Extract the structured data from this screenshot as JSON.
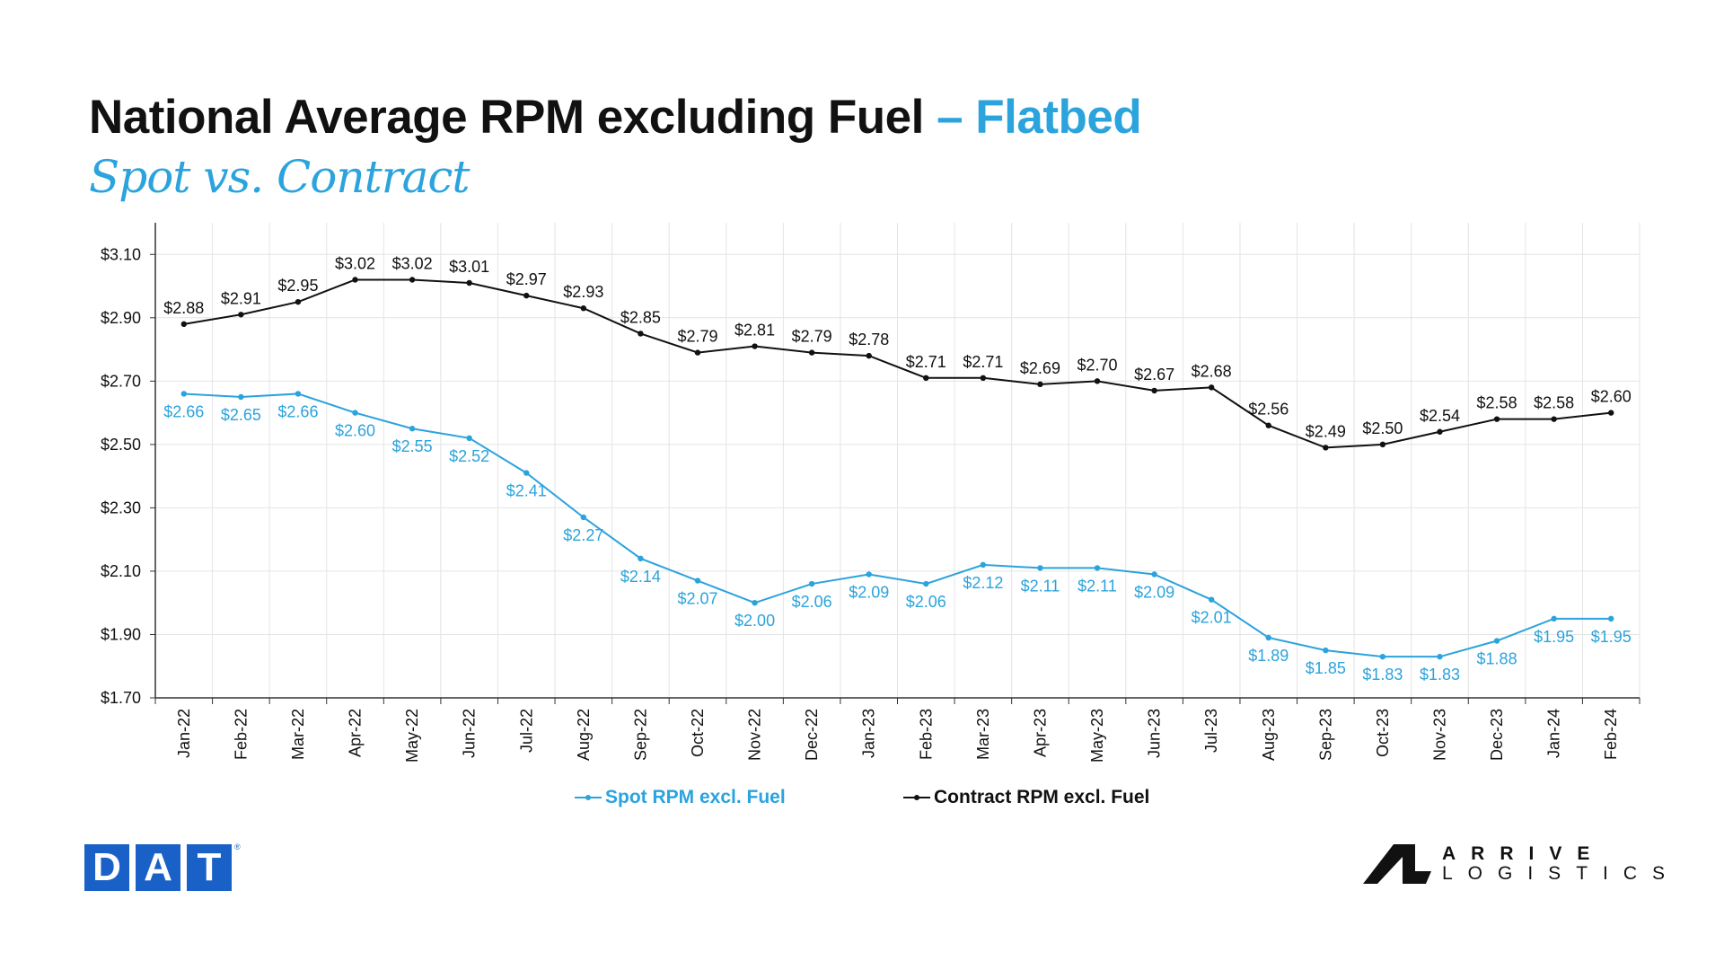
{
  "header": {
    "title": "National Average RPM excluding Fuel",
    "title_accent": "– Flatbed",
    "subtitle": "Spot vs. Contract"
  },
  "colors": {
    "spot": "#2ba3dc",
    "contract": "#111111",
    "grid": "#e4e4e4",
    "axis": "#333333"
  },
  "chart_data": {
    "type": "line",
    "title": "National Average RPM excluding Fuel – Flatbed",
    "subtitle": "Spot vs. Contract",
    "categories": [
      "Jan-22",
      "Feb-22",
      "Mar-22",
      "Apr-22",
      "May-22",
      "Jun-22",
      "Jul-22",
      "Aug-22",
      "Sep-22",
      "Oct-22",
      "Nov-22",
      "Dec-22",
      "Jan-23",
      "Feb-23",
      "Mar-23",
      "Apr-23",
      "May-23",
      "Jun-23",
      "Jul-23",
      "Aug-23",
      "Sep-23",
      "Oct-23",
      "Nov-23",
      "Dec-23",
      "Jan-24",
      "Feb-24"
    ],
    "series": [
      {
        "name": "Spot RPM excl. Fuel",
        "color": "#2ba3dc",
        "values": [
          2.66,
          2.65,
          2.66,
          2.6,
          2.55,
          2.52,
          2.41,
          2.27,
          2.14,
          2.07,
          2.0,
          2.06,
          2.09,
          2.06,
          2.12,
          2.11,
          2.11,
          2.09,
          2.01,
          1.89,
          1.85,
          1.83,
          1.83,
          1.88,
          1.95,
          1.95
        ],
        "labels": [
          "$2.66",
          "$2.65",
          "$2.66",
          "$2.60",
          "$2.55",
          "$2.52",
          "$2.41",
          "$2.27",
          "$2.14",
          "$2.07",
          "$2.00",
          "$2.06",
          "$2.09",
          "$2.06",
          "$2.12",
          "$2.11",
          "$2.11",
          "$2.09",
          "$2.01",
          "$1.89",
          "$1.85",
          "$1.83",
          "$1.83",
          "$1.88",
          "$1.95",
          "$1.95"
        ]
      },
      {
        "name": "Contract RPM excl. Fuel",
        "color": "#111111",
        "values": [
          2.88,
          2.91,
          2.95,
          3.02,
          3.02,
          3.01,
          2.97,
          2.93,
          2.85,
          2.79,
          2.81,
          2.79,
          2.78,
          2.71,
          2.71,
          2.69,
          2.7,
          2.67,
          2.68,
          2.56,
          2.49,
          2.5,
          2.54,
          2.58,
          2.58,
          2.6
        ],
        "labels": [
          "$2.88",
          "$2.91",
          "$2.95",
          "$3.02",
          "$3.02",
          "$3.01",
          "$2.97",
          "$2.93",
          "$2.85",
          "$2.79",
          "$2.81",
          "$2.79",
          "$2.78",
          "$2.71",
          "$2.71",
          "$2.69",
          "$2.70",
          "$2.67",
          "$2.68",
          "$2.56",
          "$2.49",
          "$2.50",
          "$2.54",
          "$2.58",
          "$2.58",
          "$2.60"
        ]
      }
    ],
    "yticks": [
      "$3.10",
      "$2.90",
      "$2.70",
      "$2.50",
      "$2.30",
      "$2.10",
      "$1.90",
      "$1.70"
    ],
    "ylim": [
      1.7,
      3.2
    ],
    "grid": true,
    "legend_position": "bottom"
  },
  "legend": {
    "spot": "Spot RPM excl. Fuel",
    "contract": "Contract RPM excl. Fuel"
  },
  "logos": {
    "dat": {
      "letters": [
        "D",
        "A",
        "T"
      ],
      "mark": "®"
    },
    "arrive": {
      "line1": "ARRIVE",
      "line2": "LOGISTICS"
    }
  }
}
